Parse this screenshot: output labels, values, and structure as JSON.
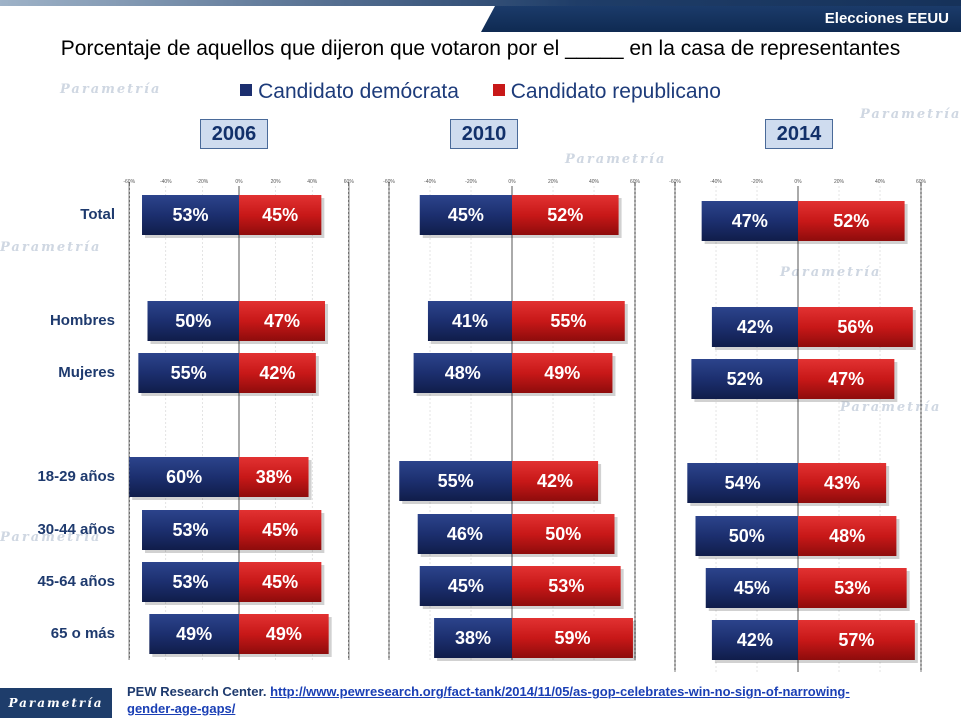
{
  "header": {
    "section": "Elecciones EEUU"
  },
  "title": "Porcentaje de aquellos que dijeron que votaron por el _____ en la casa de representantes",
  "legend": {
    "dem": "Candidato demócrata",
    "rep": "Candidato republicano"
  },
  "colors": {
    "dem": "#1c2f6f",
    "rep": "#c81818"
  },
  "source": {
    "prefix": "PEW Research Center.",
    "url_line1": "http://www.pewresearch.org/fact-tank/2014/11/05/as-gop-celebrates-win-no-sign-of-narrowing-",
    "url_line2": "gender-age-gaps/"
  },
  "logo": "Parametría",
  "chart_data": [
    {
      "type": "bar",
      "orientation": "horizontal-diverging",
      "title": "2006",
      "categories": [
        "Total",
        "Hombres",
        "Mujeres",
        "18-29 años",
        "30-44 años",
        "45-64 años",
        "65 o más"
      ],
      "series": [
        {
          "name": "Candidato demócrata",
          "values": [
            53,
            50,
            55,
            60,
            53,
            53,
            49
          ]
        },
        {
          "name": "Candidato republicano",
          "values": [
            45,
            47,
            42,
            38,
            45,
            45,
            49
          ]
        }
      ],
      "xlim": [
        -60,
        60
      ],
      "xticks": [
        "-60%",
        "-40%",
        "-20%",
        "0%",
        "20%",
        "40%",
        "60%"
      ]
    },
    {
      "type": "bar",
      "orientation": "horizontal-diverging",
      "title": "2010",
      "categories": [
        "Total",
        "Hombres",
        "Mujeres",
        "18-29 años",
        "30-44 años",
        "45-64 años",
        "65 o más"
      ],
      "series": [
        {
          "name": "Candidato demócrata",
          "values": [
            45,
            41,
            48,
            55,
            46,
            45,
            38
          ]
        },
        {
          "name": "Candidato republicano",
          "values": [
            52,
            55,
            49,
            42,
            50,
            53,
            59
          ]
        }
      ],
      "xlim": [
        -60,
        60
      ],
      "xticks": [
        "-60%",
        "-40%",
        "-20%",
        "0%",
        "20%",
        "40%",
        "60%"
      ]
    },
    {
      "type": "bar",
      "orientation": "horizontal-diverging",
      "title": "2014",
      "categories": [
        "Total",
        "Hombres",
        "Mujeres",
        "18-29 años",
        "30-44 años",
        "45-64 años",
        "65 o más"
      ],
      "series": [
        {
          "name": "Candidato demócrata",
          "values": [
            47,
            42,
            52,
            54,
            50,
            45,
            42
          ]
        },
        {
          "name": "Candidato republicano",
          "values": [
            52,
            56,
            47,
            43,
            48,
            53,
            57
          ]
        }
      ],
      "xlim": [
        -60,
        60
      ],
      "xticks": [
        "-60%",
        "-40%",
        "-20%",
        "0%",
        "20%",
        "40%",
        "60%"
      ]
    }
  ]
}
